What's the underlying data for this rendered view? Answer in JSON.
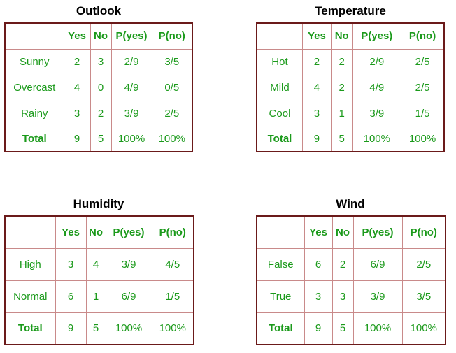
{
  "panels": [
    {
      "title": "Outlook",
      "headers": [
        "",
        "Yes",
        "No",
        "P(yes)",
        "P(no)"
      ],
      "rows": [
        [
          "Sunny",
          "2",
          "3",
          "2/9",
          "3/5"
        ],
        [
          "Overcast",
          "4",
          "0",
          "4/9",
          "0/5"
        ],
        [
          "Rainy",
          "3",
          "2",
          "3/9",
          "2/5"
        ]
      ],
      "total": [
        "Total",
        "9",
        "5",
        "100%",
        "100%"
      ]
    },
    {
      "title": "Temperature",
      "headers": [
        "",
        "Yes",
        "No",
        "P(yes)",
        "P(no)"
      ],
      "rows": [
        [
          "Hot",
          "2",
          "2",
          "2/9",
          "2/5"
        ],
        [
          "Mild",
          "4",
          "2",
          "4/9",
          "2/5"
        ],
        [
          "Cool",
          "3",
          "1",
          "3/9",
          "1/5"
        ]
      ],
      "total": [
        "Total",
        "9",
        "5",
        "100%",
        "100%"
      ]
    },
    {
      "title": "Humidity",
      "headers": [
        "",
        "Yes",
        "No",
        "P(yes)",
        "P(no)"
      ],
      "rows": [
        [
          "High",
          "3",
          "4",
          "3/9",
          "4/5"
        ],
        [
          "Normal",
          "6",
          "1",
          "6/9",
          "1/5"
        ]
      ],
      "total": [
        "Total",
        "9",
        "5",
        "100%",
        "100%"
      ]
    },
    {
      "title": "Wind",
      "headers": [
        "",
        "Yes",
        "No",
        "P(yes)",
        "P(no)"
      ],
      "rows": [
        [
          "False",
          "6",
          "2",
          "6/9",
          "2/5"
        ],
        [
          "True",
          "3",
          "3",
          "3/9",
          "3/5"
        ]
      ],
      "total": [
        "Total",
        "9",
        "5",
        "100%",
        "100%"
      ]
    }
  ]
}
